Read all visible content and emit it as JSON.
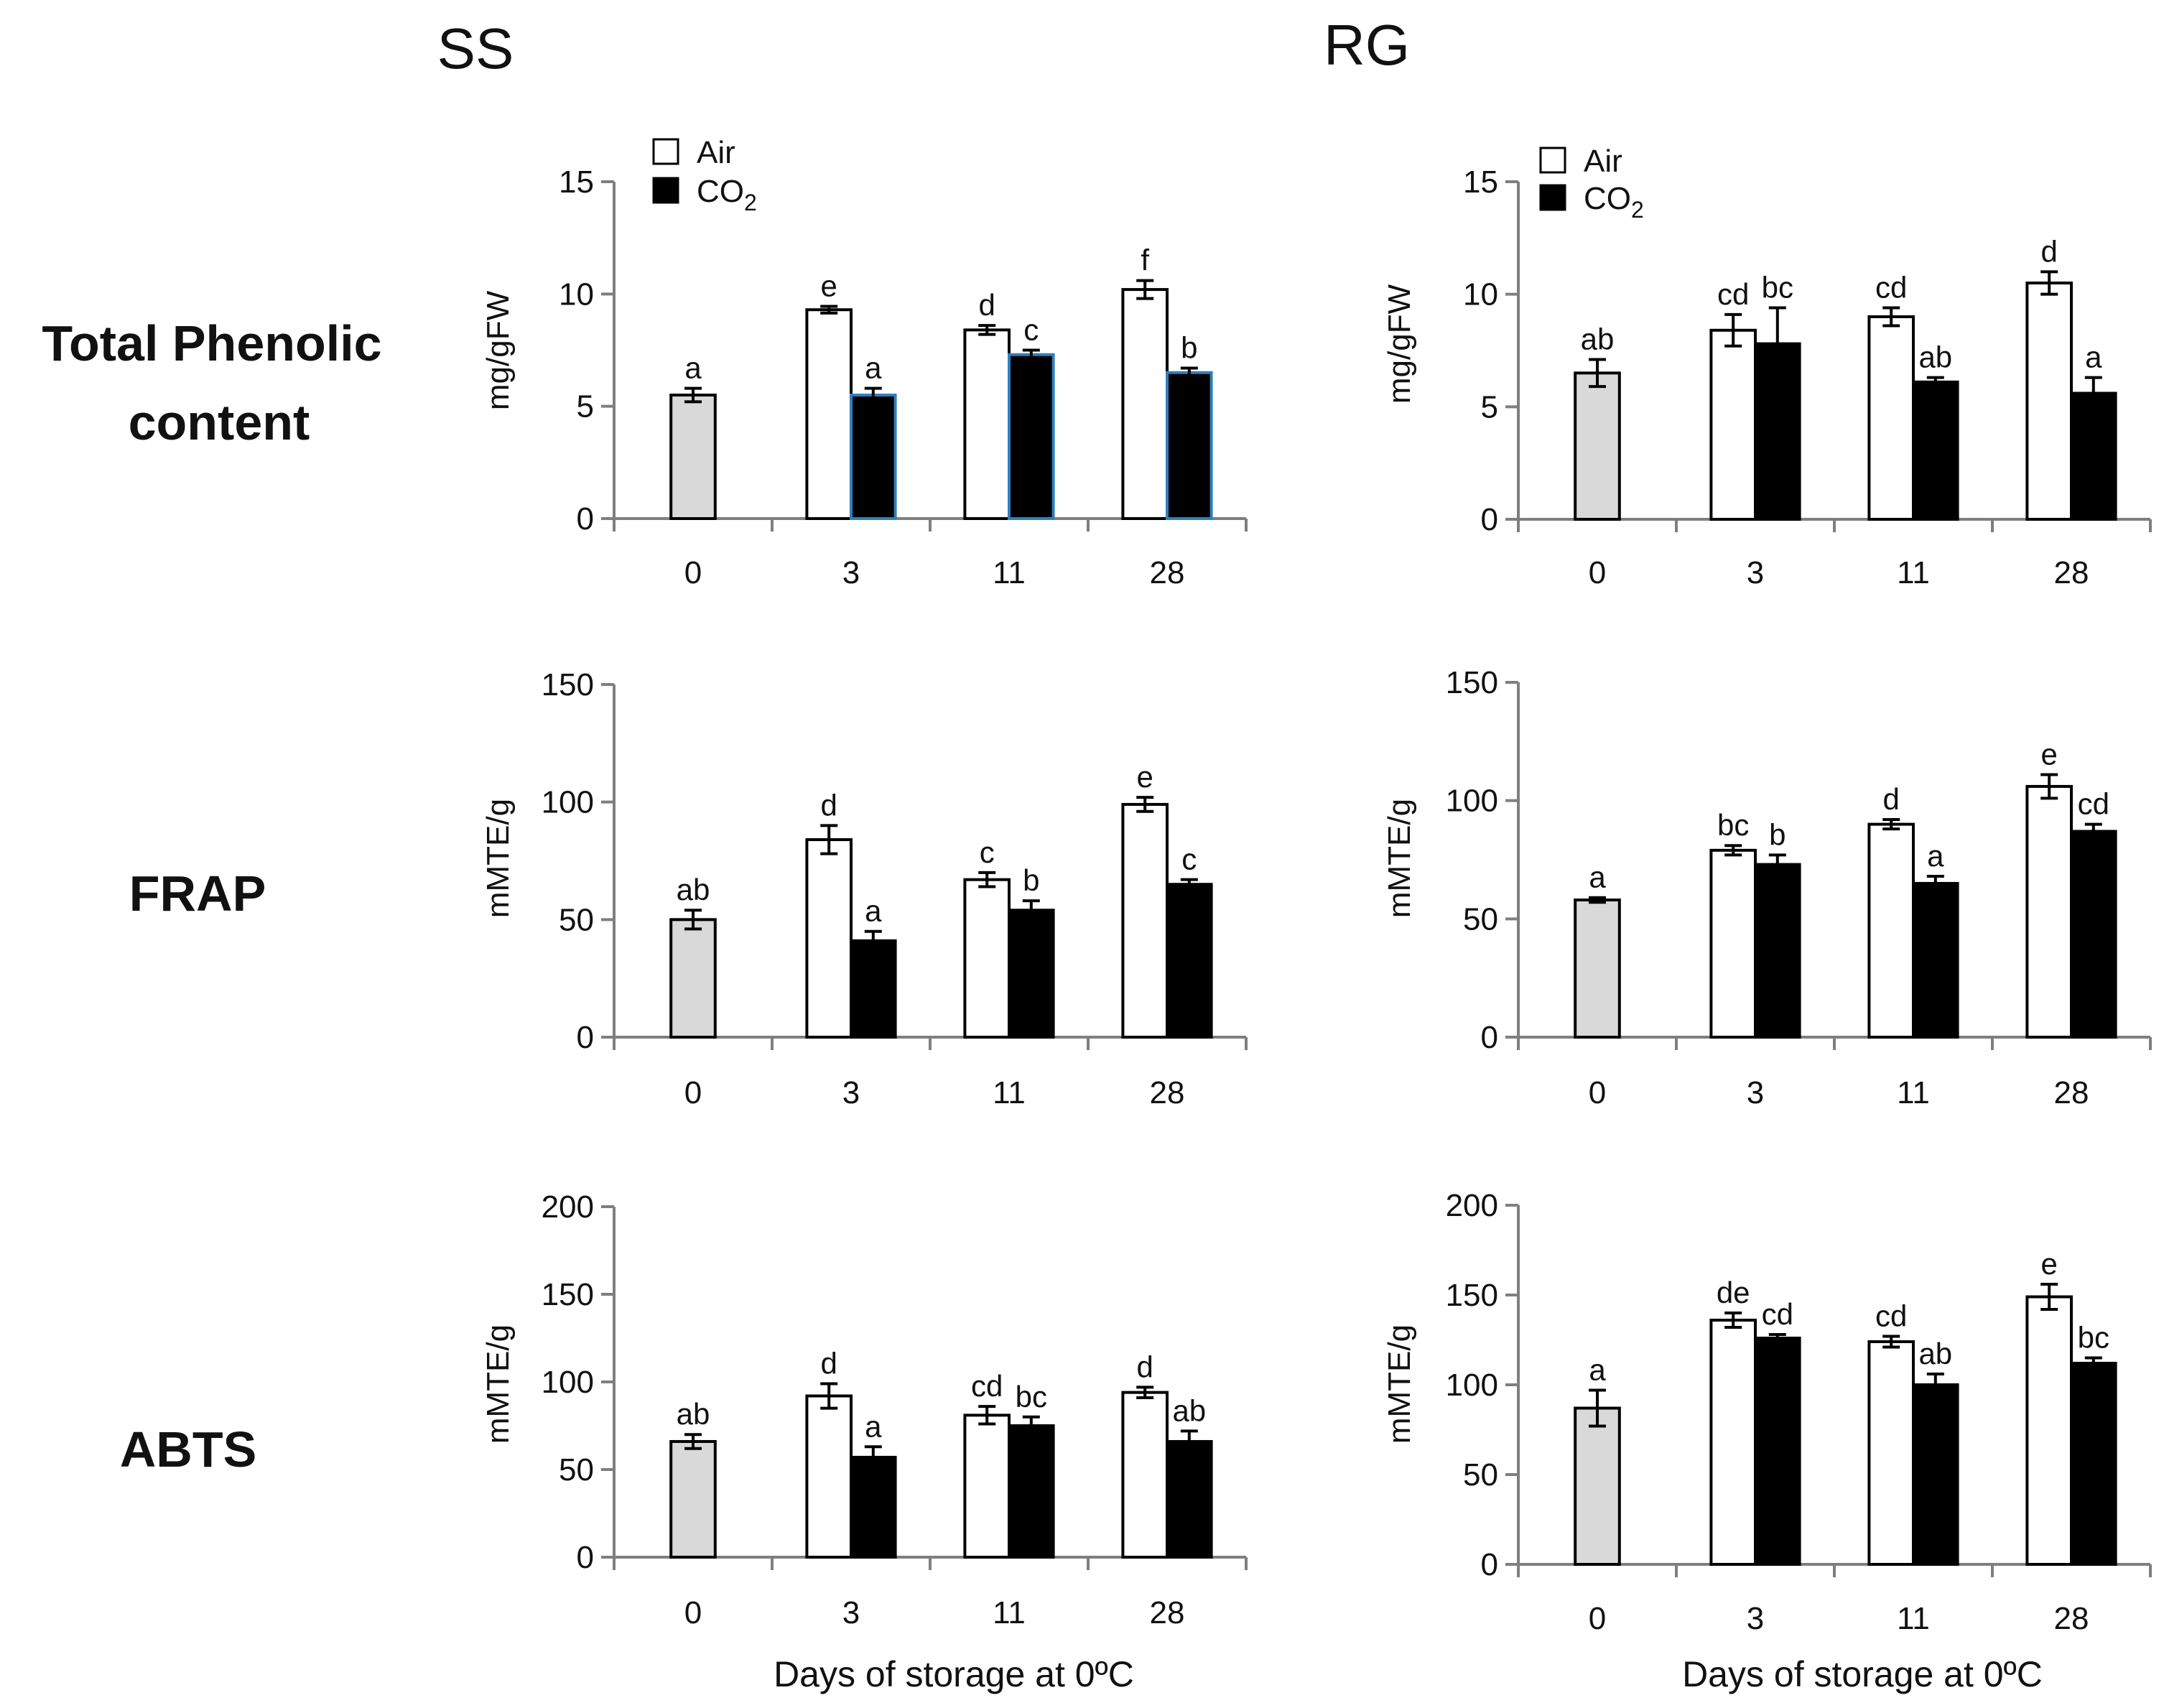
{
  "figure": {
    "column_titles": [
      "SS",
      "RG"
    ],
    "row_labels": [
      {
        "line1": "Total Phenolic",
        "line2": "content"
      },
      {
        "line1": "FRAP",
        "line2": ""
      },
      {
        "line1": "ABTS",
        "line2": ""
      }
    ],
    "xlabel": "Days of storage at 0ºC",
    "legend": {
      "air": "Air",
      "co2_main": "CO",
      "co2_sub": "2"
    },
    "colors": {
      "control": "#d9d9d9",
      "air": "#ffffff",
      "co2": "#000000",
      "ss_phenolic_co2_edge": "#2e7fbf"
    }
  },
  "chart_data": [
    {
      "id": "ss-phenolic",
      "type": "bar",
      "cultivar": "SS",
      "measure": "Total Phenolic content",
      "ylabel": "mg/gFW",
      "ylim": [
        0,
        15
      ],
      "yticks": [
        0,
        5,
        10,
        15
      ],
      "categories": [
        "0",
        "3",
        "11",
        "28"
      ],
      "control": {
        "name": "Day 0",
        "value": 5.5,
        "error": 0.3,
        "letter": "a"
      },
      "series": [
        {
          "name": "Air",
          "values": [
            null,
            9.3,
            8.4,
            10.2
          ],
          "errors": [
            null,
            0.15,
            0.2,
            0.4
          ],
          "letters": [
            null,
            "e",
            "d",
            "f"
          ]
        },
        {
          "name": "CO2",
          "values": [
            null,
            5.5,
            7.3,
            6.5
          ],
          "errors": [
            null,
            0.3,
            0.2,
            0.2
          ],
          "letters": [
            null,
            "a",
            "c",
            "b"
          ]
        }
      ]
    },
    {
      "id": "rg-phenolic",
      "type": "bar",
      "cultivar": "RG",
      "measure": "Total Phenolic content",
      "ylabel": "mg/gFW",
      "ylim": [
        0,
        15
      ],
      "yticks": [
        0,
        5,
        10,
        15
      ],
      "categories": [
        "0",
        "3",
        "11",
        "28"
      ],
      "control": {
        "name": "Day 0",
        "value": 6.5,
        "error": 0.6,
        "letter": "ab"
      },
      "series": [
        {
          "name": "Air",
          "values": [
            null,
            8.4,
            9.0,
            10.5
          ],
          "errors": [
            null,
            0.7,
            0.4,
            0.5
          ],
          "letters": [
            null,
            "cd",
            "cd",
            "d"
          ]
        },
        {
          "name": "CO2",
          "values": [
            null,
            7.8,
            6.1,
            5.6
          ],
          "errors": [
            null,
            1.6,
            0.2,
            0.7
          ],
          "letters": [
            null,
            "bc",
            "ab",
            "a"
          ]
        }
      ]
    },
    {
      "id": "ss-frap",
      "type": "bar",
      "cultivar": "SS",
      "measure": "FRAP",
      "ylabel": "mMTE/g",
      "ylim": [
        0,
        150
      ],
      "yticks": [
        0,
        50,
        100,
        150
      ],
      "categories": [
        "0",
        "3",
        "11",
        "28"
      ],
      "control": {
        "name": "Day 0",
        "value": 50,
        "error": 4,
        "letter": "ab"
      },
      "series": [
        {
          "name": "Air",
          "values": [
            null,
            84,
            67,
            99
          ],
          "errors": [
            null,
            6,
            3,
            3
          ],
          "letters": [
            null,
            "d",
            "c",
            "e"
          ]
        },
        {
          "name": "CO2",
          "values": [
            null,
            41,
            54,
            65
          ],
          "errors": [
            null,
            4,
            4,
            2
          ],
          "letters": [
            null,
            "a",
            "b",
            "c"
          ]
        }
      ]
    },
    {
      "id": "rg-frap",
      "type": "bar",
      "cultivar": "RG",
      "measure": "FRAP",
      "ylabel": "mMTE/g",
      "ylim": [
        0,
        150
      ],
      "yticks": [
        0,
        50,
        100,
        150
      ],
      "categories": [
        "0",
        "3",
        "11",
        "28"
      ],
      "control": {
        "name": "Day 0",
        "value": 58,
        "error": 1,
        "letter": "a"
      },
      "series": [
        {
          "name": "Air",
          "values": [
            null,
            79,
            90,
            106
          ],
          "errors": [
            null,
            2,
            2,
            5
          ],
          "letters": [
            null,
            "bc",
            "d",
            "e"
          ]
        },
        {
          "name": "CO2",
          "values": [
            null,
            73,
            65,
            87
          ],
          "errors": [
            null,
            4,
            3,
            3
          ],
          "letters": [
            null,
            "b",
            "a",
            "cd"
          ]
        }
      ]
    },
    {
      "id": "ss-abts",
      "type": "bar",
      "cultivar": "SS",
      "measure": "ABTS",
      "ylabel": "mMTE/g",
      "ylim": [
        0,
        200
      ],
      "yticks": [
        0,
        50,
        100,
        150,
        200
      ],
      "categories": [
        "0",
        "3",
        "11",
        "28"
      ],
      "control": {
        "name": "Day 0",
        "value": 66,
        "error": 4,
        "letter": "ab"
      },
      "series": [
        {
          "name": "Air",
          "values": [
            null,
            92,
            81,
            94
          ],
          "errors": [
            null,
            7,
            5,
            3
          ],
          "letters": [
            null,
            "d",
            "cd",
            "d"
          ]
        },
        {
          "name": "CO2",
          "values": [
            null,
            57,
            75,
            66
          ],
          "errors": [
            null,
            6,
            5,
            6
          ],
          "letters": [
            null,
            "a",
            "bc",
            "ab"
          ]
        }
      ]
    },
    {
      "id": "rg-abts",
      "type": "bar",
      "cultivar": "RG",
      "measure": "ABTS",
      "ylabel": "mMTE/g",
      "ylim": [
        0,
        200
      ],
      "yticks": [
        0,
        50,
        100,
        150,
        200
      ],
      "categories": [
        "0",
        "3",
        "11",
        "28"
      ],
      "control": {
        "name": "Day 0",
        "value": 87,
        "error": 10,
        "letter": "a"
      },
      "series": [
        {
          "name": "Air",
          "values": [
            null,
            136,
            124,
            149
          ],
          "errors": [
            null,
            4,
            3,
            7
          ],
          "letters": [
            null,
            "de",
            "cd",
            "e"
          ]
        },
        {
          "name": "CO2",
          "values": [
            null,
            126,
            100,
            112
          ],
          "errors": [
            null,
            2,
            6,
            3
          ],
          "letters": [
            null,
            "cd",
            "ab",
            "bc"
          ]
        }
      ]
    }
  ]
}
